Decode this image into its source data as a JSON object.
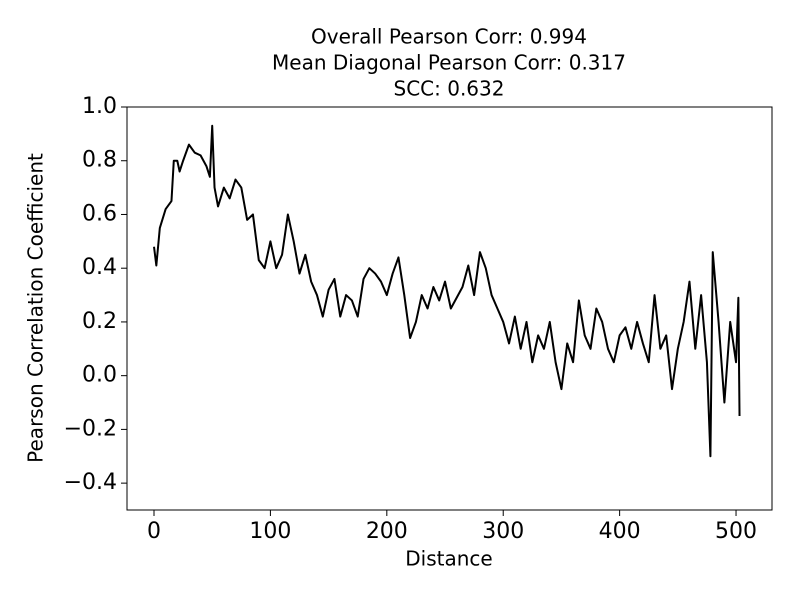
{
  "chart_data": {
    "type": "line",
    "title": [
      "Overall Pearson Corr: 0.994",
      "Mean Diagonal Pearson Corr: 0.317",
      "SCC: 0.632"
    ],
    "xlabel": "Distance",
    "ylabel": "Pearson Correlation Coefficient",
    "xlim": [
      -23.2,
      530.9
    ],
    "ylim": [
      -0.5,
      1.0
    ],
    "xticks": [
      0,
      100,
      200,
      300,
      400,
      500
    ],
    "yticks": [
      {
        "value": -0.4,
        "label": "−0.4"
      },
      {
        "value": -0.2,
        "label": "−0.2"
      },
      {
        "value": 0,
        "label": "0.0"
      },
      0.2,
      0.4,
      0.6,
      0.8,
      {
        "value": 1,
        "label": "1.0"
      }
    ],
    "series": [
      {
        "color": "#000000",
        "x": [
          0,
          2,
          5,
          10,
          15,
          17,
          20,
          22,
          25,
          30,
          35,
          40,
          45,
          48,
          50,
          52,
          55,
          60,
          65,
          70,
          75,
          80,
          85,
          90,
          95,
          100,
          105,
          110,
          115,
          120,
          125,
          130,
          135,
          140,
          145,
          150,
          155,
          160,
          165,
          170,
          175,
          180,
          185,
          190,
          195,
          200,
          205,
          210,
          215,
          220,
          225,
          230,
          235,
          240,
          245,
          250,
          255,
          260,
          265,
          270,
          275,
          280,
          285,
          290,
          295,
          300,
          305,
          310,
          315,
          320,
          325,
          330,
          335,
          340,
          345,
          350,
          355,
          360,
          365,
          370,
          375,
          380,
          385,
          390,
          395,
          400,
          405,
          410,
          415,
          420,
          425,
          430,
          435,
          440,
          445,
          450,
          455,
          460,
          465,
          470,
          475,
          478,
          480,
          485,
          490,
          495,
          500,
          502,
          503
        ],
        "values": [
          0.48,
          0.41,
          0.55,
          0.62,
          0.65,
          0.8,
          0.8,
          0.76,
          0.8,
          0.86,
          0.83,
          0.82,
          0.78,
          0.74,
          0.93,
          0.7,
          0.63,
          0.7,
          0.66,
          0.73,
          0.7,
          0.58,
          0.6,
          0.43,
          0.4,
          0.5,
          0.4,
          0.45,
          0.6,
          0.5,
          0.38,
          0.45,
          0.35,
          0.3,
          0.22,
          0.32,
          0.36,
          0.22,
          0.3,
          0.28,
          0.22,
          0.36,
          0.4,
          0.38,
          0.35,
          0.3,
          0.38,
          0.44,
          0.3,
          0.14,
          0.2,
          0.3,
          0.25,
          0.33,
          0.28,
          0.35,
          0.25,
          0.29,
          0.33,
          0.41,
          0.3,
          0.46,
          0.4,
          0.3,
          0.25,
          0.2,
          0.12,
          0.22,
          0.1,
          0.2,
          0.05,
          0.15,
          0.1,
          0.2,
          0.05,
          -0.05,
          0.12,
          0.05,
          0.28,
          0.15,
          0.1,
          0.25,
          0.2,
          0.1,
          0.05,
          0.15,
          0.18,
          0.1,
          0.2,
          0.12,
          0.05,
          0.3,
          0.1,
          0.15,
          -0.05,
          0.1,
          0.2,
          0.35,
          0.1,
          0.3,
          0.05,
          -0.3,
          0.46,
          0.2,
          -0.1,
          0.2,
          0.05,
          0.29,
          -0.15
        ]
      }
    ]
  }
}
